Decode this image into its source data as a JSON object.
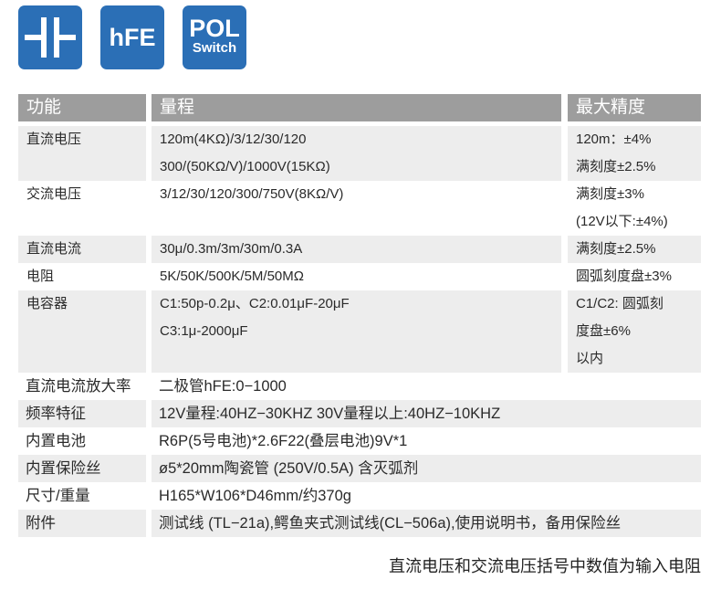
{
  "icons": [
    {
      "name": "capacitor-icon"
    },
    {
      "name": "hfe-icon",
      "label": "hFE"
    },
    {
      "name": "pol-switch-icon",
      "label_top": "POL",
      "label_bottom": "Switch"
    }
  ],
  "colors": {
    "icon_blue": "#2b6fb6",
    "header_gray": "#9d9d9d",
    "row_gray": "#ededed"
  },
  "header": {
    "function": "功能",
    "range": "量程",
    "accuracy": "最大精度"
  },
  "rows": [
    {
      "function": "直流电压",
      "range": [
        "120m(4KΩ)/3/12/30/120",
        "300/(50KΩ/V)/1000V(15KΩ)"
      ],
      "accuracy": [
        "120m：±4%",
        "满刻度±2.5%"
      ]
    },
    {
      "function": "交流电压",
      "range": [
        "3/12/30/120/300/750V(8KΩ/V)"
      ],
      "accuracy": [
        "满刻度±3%",
        "(12V以下:±4%)"
      ]
    },
    {
      "function": "直流电流",
      "range": [
        "30μ/0.3m/3m/30m/0.3A"
      ],
      "accuracy": [
        "满刻度±2.5%"
      ]
    },
    {
      "function": "电阻",
      "range": [
        "5K/50K/500K/5M/50MΩ"
      ],
      "accuracy": [
        "圆弧刻度盘±3%"
      ]
    },
    {
      "function": "电容器",
      "range": [
        "C1:50p-0.2μ、C2:0.01μF-20μF",
        "C3:1μ-2000μF"
      ],
      "accuracy": [
        "C1/C2: 圆弧刻",
        "度盘±6%",
        "以内"
      ]
    }
  ],
  "specs": [
    {
      "label": "直流电流放大率",
      "value": "二极管hFE:0−1000"
    },
    {
      "label": "频率特征",
      "value": "12V量程:40HZ−30KHZ 30V量程以上:40HZ−10KHZ"
    },
    {
      "label": "内置电池",
      "value": "R6P(5号电池)*2.6F22(叠层电池)9V*1"
    },
    {
      "label": "内置保险丝",
      "value": "ø5*20mm陶瓷管 (250V/0.5A) 含灭弧剂"
    },
    {
      "label": "尺寸/重量",
      "value": "H165*W106*D46mm/约370g"
    },
    {
      "label": "附件",
      "value": "测试线 (TL−21a),鳄鱼夹式测试线(CL−506a),使用说明书，备用保险丝"
    }
  ],
  "footnote": "直流电压和交流电压括号中数值为输入电阻"
}
